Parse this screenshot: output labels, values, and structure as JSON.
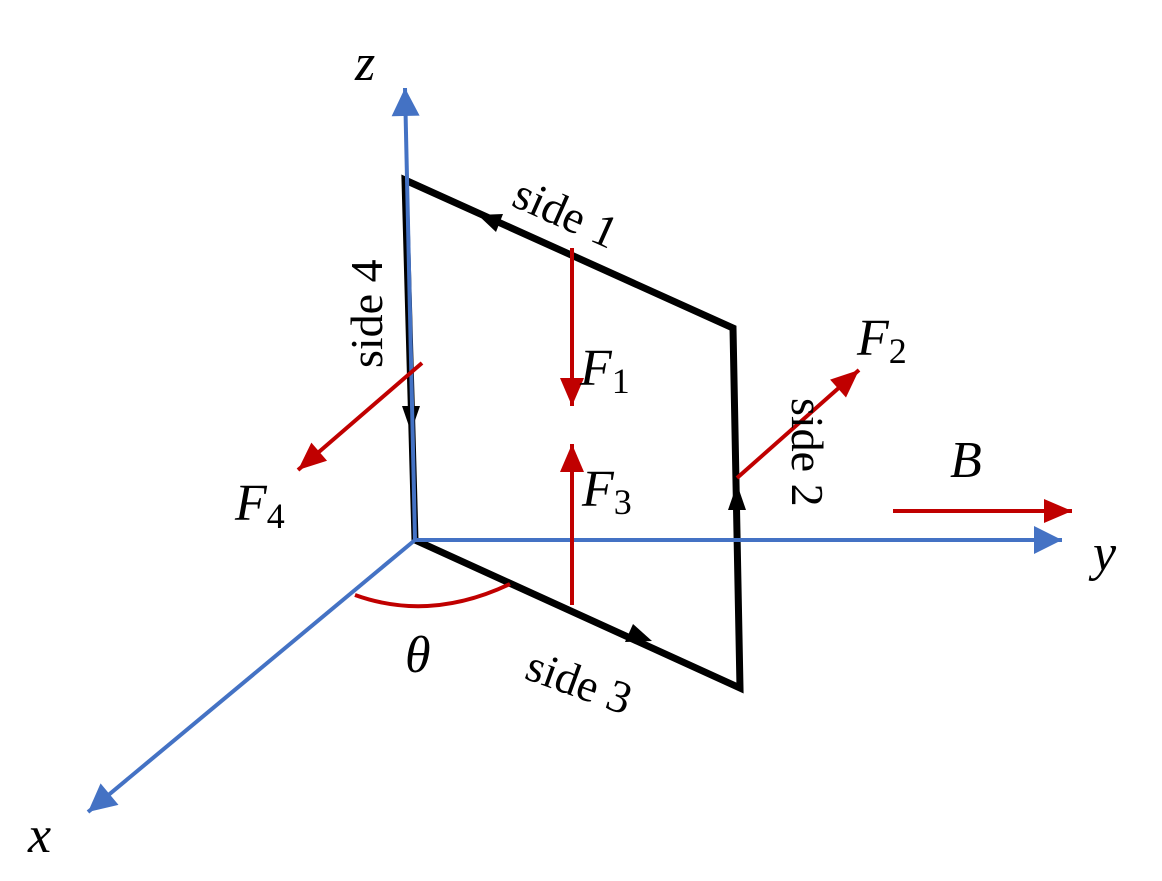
{
  "axes": {
    "x": "x",
    "y": "y",
    "z": "z"
  },
  "sides": [
    "side 1",
    "side 2",
    "side 3",
    "side 4"
  ],
  "forces": [
    {
      "symbol": "F",
      "subscript": "1"
    },
    {
      "symbol": "F",
      "subscript": "2"
    },
    {
      "symbol": "F",
      "subscript": "3"
    },
    {
      "symbol": "F",
      "subscript": "4"
    }
  ],
  "field": "B",
  "angle": "θ"
}
